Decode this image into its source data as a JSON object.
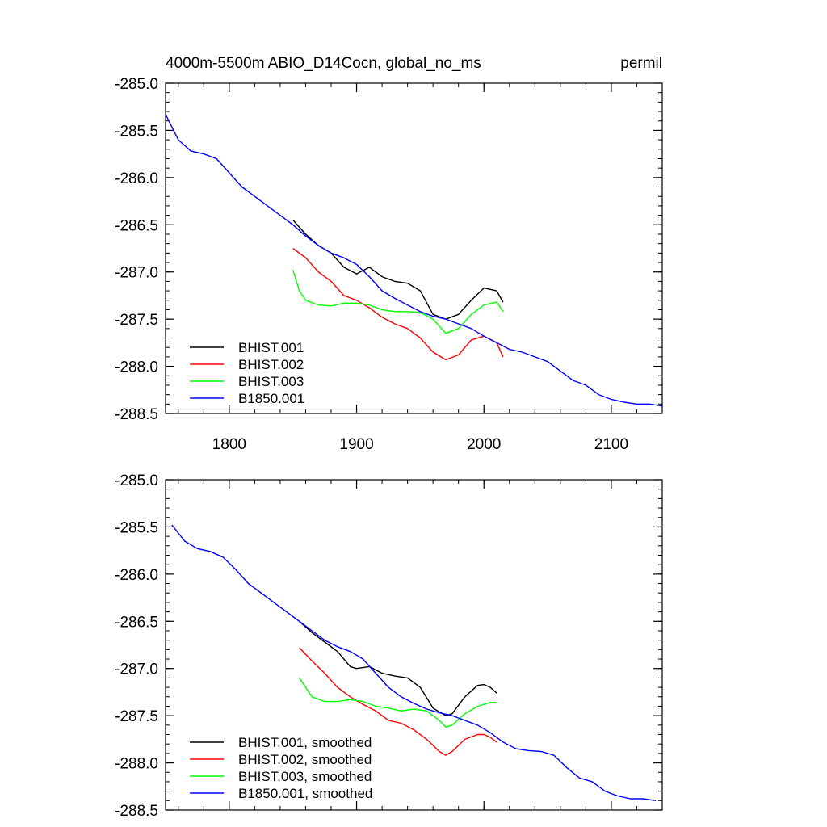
{
  "chart_data": [
    {
      "type": "line",
      "title_left": "4000m-5500m ABIO_D14Cocn, global_no_ms",
      "title_right": "permil",
      "xlabel": "",
      "ylabel": "",
      "xlim": [
        1750,
        2140
      ],
      "ylim": [
        -288.5,
        -285.0
      ],
      "xticks": [
        "1800",
        "1900",
        "2000",
        "2100"
      ],
      "yticks": [
        "-285.0",
        "-285.5",
        "-286.0",
        "-286.5",
        "-287.0",
        "-287.5",
        "-288.0",
        "-288.5"
      ],
      "legend_position": "bottom-left",
      "series": [
        {
          "name": "BHIST.001",
          "color": "#000000",
          "x": [
            1850,
            1860,
            1870,
            1880,
            1890,
            1900,
            1910,
            1920,
            1930,
            1940,
            1950,
            1960,
            1970,
            1980,
            1990,
            2000,
            2010,
            2015
          ],
          "y": [
            -286.45,
            -286.6,
            -286.72,
            -286.8,
            -286.95,
            -287.02,
            -286.95,
            -287.05,
            -287.1,
            -287.12,
            -287.2,
            -287.45,
            -287.5,
            -287.45,
            -287.3,
            -287.17,
            -287.2,
            -287.32
          ]
        },
        {
          "name": "BHIST.002",
          "color": "#ff0000",
          "x": [
            1850,
            1860,
            1870,
            1880,
            1890,
            1900,
            1910,
            1920,
            1930,
            1940,
            1950,
            1960,
            1970,
            1980,
            1990,
            2000,
            2010,
            2015
          ],
          "y": [
            -286.75,
            -286.85,
            -287.0,
            -287.1,
            -287.25,
            -287.3,
            -287.38,
            -287.48,
            -287.55,
            -287.6,
            -287.7,
            -287.85,
            -287.93,
            -287.88,
            -287.72,
            -287.68,
            -287.75,
            -287.9
          ]
        },
        {
          "name": "BHIST.003",
          "color": "#00ff00",
          "x": [
            1850,
            1855,
            1860,
            1870,
            1880,
            1890,
            1900,
            1910,
            1920,
            1930,
            1940,
            1950,
            1960,
            1970,
            1980,
            1990,
            2000,
            2010,
            2015
          ],
          "y": [
            -286.98,
            -287.2,
            -287.3,
            -287.35,
            -287.36,
            -287.33,
            -287.33,
            -287.35,
            -287.4,
            -287.42,
            -287.42,
            -287.43,
            -287.5,
            -287.65,
            -287.6,
            -287.45,
            -287.35,
            -287.32,
            -287.42
          ]
        },
        {
          "name": "B1850.001",
          "color": "#0000ff",
          "x": [
            1750,
            1760,
            1770,
            1780,
            1790,
            1800,
            1810,
            1820,
            1830,
            1840,
            1850,
            1860,
            1870,
            1880,
            1890,
            1900,
            1910,
            1920,
            1930,
            1940,
            1950,
            1960,
            1970,
            1980,
            1990,
            2000,
            2010,
            2020,
            2030,
            2040,
            2050,
            2060,
            2070,
            2080,
            2090,
            2100,
            2110,
            2120,
            2130,
            2140
          ],
          "y": [
            -285.33,
            -285.6,
            -285.72,
            -285.75,
            -285.8,
            -285.95,
            -286.1,
            -286.2,
            -286.3,
            -286.4,
            -286.5,
            -286.62,
            -286.72,
            -286.8,
            -286.85,
            -286.92,
            -287.05,
            -287.2,
            -287.28,
            -287.35,
            -287.42,
            -287.47,
            -287.5,
            -287.55,
            -287.6,
            -287.68,
            -287.75,
            -287.82,
            -287.85,
            -287.9,
            -287.95,
            -288.05,
            -288.15,
            -288.2,
            -288.3,
            -288.35,
            -288.38,
            -288.4,
            -288.4,
            -288.42
          ]
        }
      ]
    },
    {
      "type": "line",
      "xlabel": "",
      "ylabel": "",
      "xlim": [
        1750,
        2140
      ],
      "ylim": [
        -288.5,
        -285.0
      ],
      "yticks": [
        "-285.0",
        "-285.5",
        "-286.0",
        "-286.5",
        "-287.0",
        "-287.5",
        "-288.0",
        "-288.5"
      ],
      "legend_position": "bottom-left",
      "series": [
        {
          "name": "BHIST.001, smoothed",
          "color": "#000000",
          "x": [
            1855,
            1865,
            1875,
            1885,
            1895,
            1900,
            1910,
            1920,
            1930,
            1940,
            1950,
            1960,
            1970,
            1975,
            1985,
            1995,
            2000,
            2005,
            2010
          ],
          "y": [
            -286.5,
            -286.62,
            -286.72,
            -286.82,
            -286.98,
            -287.0,
            -286.98,
            -287.05,
            -287.08,
            -287.1,
            -287.2,
            -287.42,
            -287.5,
            -287.48,
            -287.3,
            -287.18,
            -287.17,
            -287.2,
            -287.26
          ]
        },
        {
          "name": "BHIST.002, smoothed",
          "color": "#ff0000",
          "x": [
            1855,
            1865,
            1875,
            1885,
            1895,
            1905,
            1915,
            1925,
            1935,
            1945,
            1955,
            1965,
            1970,
            1975,
            1985,
            1995,
            2000,
            2005,
            2010
          ],
          "y": [
            -286.78,
            -286.92,
            -287.05,
            -287.2,
            -287.3,
            -287.38,
            -287.45,
            -287.55,
            -287.58,
            -287.65,
            -287.75,
            -287.88,
            -287.92,
            -287.88,
            -287.75,
            -287.7,
            -287.7,
            -287.73,
            -287.78
          ]
        },
        {
          "name": "BHIST.003, smoothed",
          "color": "#00ff00",
          "x": [
            1855,
            1860,
            1865,
            1875,
            1885,
            1895,
            1905,
            1915,
            1925,
            1935,
            1945,
            1955,
            1965,
            1970,
            1975,
            1985,
            1995,
            2005,
            2010
          ],
          "y": [
            -287.1,
            -287.2,
            -287.3,
            -287.35,
            -287.35,
            -287.33,
            -287.35,
            -287.4,
            -287.42,
            -287.45,
            -287.43,
            -287.45,
            -287.55,
            -287.62,
            -287.6,
            -287.48,
            -287.4,
            -287.36,
            -287.36
          ]
        },
        {
          "name": "B1850.001, smoothed",
          "color": "#0000ff",
          "x": [
            1755,
            1765,
            1775,
            1785,
            1795,
            1805,
            1815,
            1825,
            1835,
            1845,
            1855,
            1865,
            1875,
            1885,
            1895,
            1905,
            1915,
            1925,
            1935,
            1945,
            1955,
            1965,
            1975,
            1985,
            1995,
            2005,
            2015,
            2025,
            2035,
            2045,
            2055,
            2065,
            2075,
            2085,
            2095,
            2105,
            2115,
            2125,
            2135
          ],
          "y": [
            -285.48,
            -285.65,
            -285.73,
            -285.76,
            -285.82,
            -285.95,
            -286.1,
            -286.2,
            -286.3,
            -286.4,
            -286.5,
            -286.6,
            -286.7,
            -286.77,
            -286.82,
            -286.9,
            -287.05,
            -287.2,
            -287.3,
            -287.37,
            -287.43,
            -287.47,
            -287.5,
            -287.55,
            -287.6,
            -287.68,
            -287.78,
            -287.85,
            -287.87,
            -287.88,
            -287.92,
            -288.05,
            -288.16,
            -288.2,
            -288.3,
            -288.35,
            -288.38,
            -288.38,
            -288.4
          ]
        }
      ]
    }
  ]
}
